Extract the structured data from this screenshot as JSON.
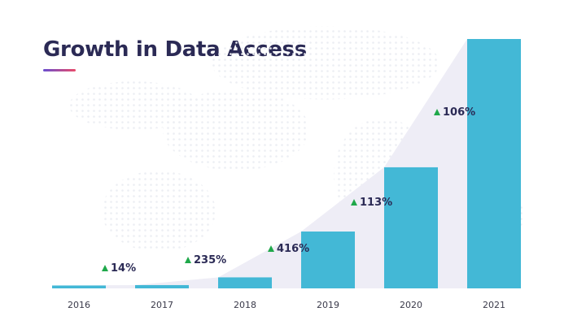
{
  "title": "Growth in Data Access",
  "colors": {
    "bar": "#43b8d6",
    "title": "#2b2a55",
    "growth_arrow": "#1fa84a",
    "area": "#eeedf6",
    "dots": "#eceef3",
    "underline_start": "#6a4fd0",
    "underline_end": "#e94b6a"
  },
  "chart_data": {
    "type": "bar",
    "title": "Growth in Data Access",
    "categories": [
      "2016",
      "2017",
      "2018",
      "2019",
      "2020",
      "2021"
    ],
    "values": [
      1.0,
      1.14,
      3.82,
      19.72,
      42.0,
      86.5
    ],
    "growth_labels": [
      "",
      "14%",
      "235%",
      "416%",
      "113%",
      "106%"
    ],
    "ylim": [
      0,
      86.5
    ],
    "xlabel": "",
    "ylabel": "",
    "grid": false,
    "legend": "none"
  }
}
